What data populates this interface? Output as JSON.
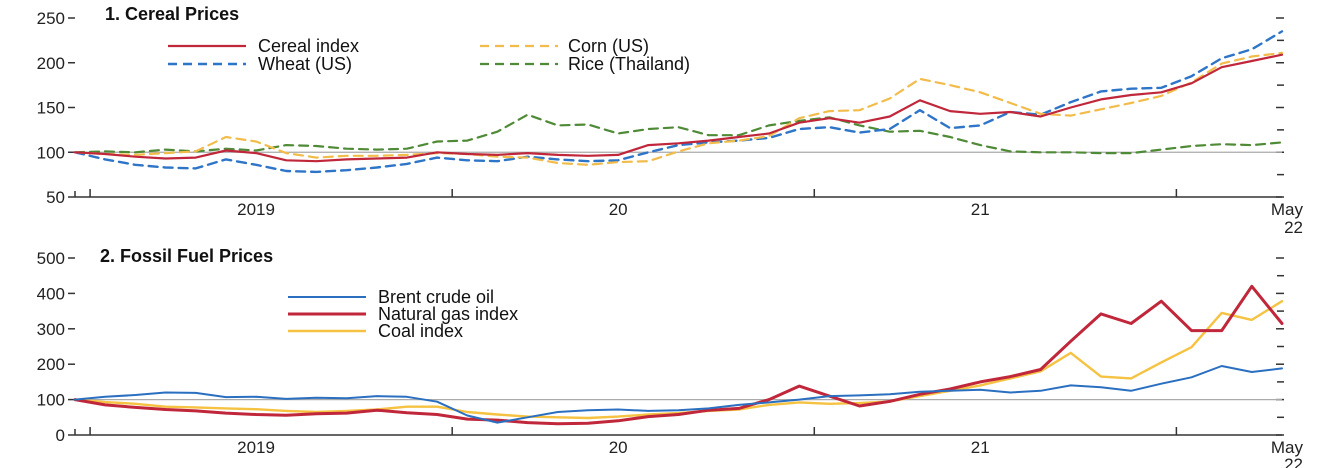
{
  "chart_data": [
    {
      "type": "line",
      "title": "1. Cereal Prices",
      "ylim": [
        50,
        250
      ],
      "yticks": [
        50,
        100,
        150,
        200,
        250
      ],
      "reference_line": 100,
      "x": [
        "2019-01",
        "2019-02",
        "2019-03",
        "2019-04",
        "2019-05",
        "2019-06",
        "2019-07",
        "2019-08",
        "2019-09",
        "2019-10",
        "2019-11",
        "2019-12",
        "2020-01",
        "2020-02",
        "2020-03",
        "2020-04",
        "2020-05",
        "2020-06",
        "2020-07",
        "2020-08",
        "2020-09",
        "2020-10",
        "2020-11",
        "2020-12",
        "2021-01",
        "2021-02",
        "2021-03",
        "2021-04",
        "2021-05",
        "2021-06",
        "2021-07",
        "2021-08",
        "2021-09",
        "2021-10",
        "2021-11",
        "2021-12",
        "2022-01",
        "2022-02",
        "2022-03",
        "2022-04",
        "2022-05"
      ],
      "xtick_labels": [
        {
          "label": "2019",
          "at": 6
        },
        {
          "label": "20",
          "at": 18
        },
        {
          "label": "21",
          "at": 30
        }
      ],
      "end_label": [
        "May",
        "22"
      ],
      "year_boundaries": [
        0.5,
        12.5,
        24.5,
        36.5
      ],
      "legend": {
        "placement": "top-left",
        "columns": 2
      },
      "series": [
        {
          "name": "Cereal index",
          "color": "#c0273a",
          "dash": "solid",
          "width": 2.2,
          "values": [
            100,
            98,
            95,
            93,
            94,
            102,
            99,
            91,
            90,
            92,
            93,
            94,
            100,
            98,
            97,
            99,
            97,
            96,
            97,
            108,
            110,
            113,
            117,
            121,
            133,
            138,
            133,
            140,
            158,
            146,
            143,
            145,
            140,
            150,
            159,
            164,
            167,
            177,
            195,
            202,
            209
          ]
        },
        {
          "name": "Corn (US)",
          "color": "#f2bc4b",
          "dash": "dashed",
          "width": 2.2,
          "values": [
            100,
            98,
            97,
            99,
            101,
            117,
            112,
            99,
            94,
            96,
            96,
            97,
            99,
            98,
            95,
            94,
            88,
            86,
            89,
            90,
            101,
            110,
            113,
            118,
            138,
            146,
            147,
            160,
            182,
            175,
            167,
            155,
            143,
            141,
            148,
            155,
            163,
            178,
            199,
            207,
            211
          ]
        },
        {
          "name": "Wheat (US)",
          "color": "#2e75c8",
          "dash": "dashed",
          "width": 2.4,
          "values": [
            100,
            92,
            86,
            83,
            82,
            92,
            86,
            79,
            78,
            80,
            83,
            87,
            94,
            91,
            90,
            95,
            92,
            90,
            91,
            100,
            108,
            111,
            113,
            116,
            126,
            128,
            122,
            126,
            147,
            127,
            130,
            145,
            142,
            156,
            168,
            171,
            172,
            185,
            205,
            215,
            235
          ]
        },
        {
          "name": "Rice (Thailand)",
          "color": "#4f8a36",
          "dash": "dashed",
          "width": 2.2,
          "values": [
            100,
            101,
            100,
            103,
            101,
            104,
            102,
            108,
            107,
            104,
            103,
            104,
            112,
            113,
            123,
            142,
            130,
            131,
            121,
            126,
            128,
            119,
            119,
            130,
            135,
            139,
            130,
            123,
            124,
            117,
            108,
            101,
            100,
            100,
            99,
            99,
            103,
            107,
            109,
            108,
            111
          ]
        }
      ]
    },
    {
      "type": "line",
      "title": "2. Fossil Fuel Prices",
      "ylim": [
        0,
        500
      ],
      "yticks": [
        0,
        100,
        200,
        300,
        400,
        500
      ],
      "reference_line": 100,
      "x": [
        "2019-01",
        "2019-02",
        "2019-03",
        "2019-04",
        "2019-05",
        "2019-06",
        "2019-07",
        "2019-08",
        "2019-09",
        "2019-10",
        "2019-11",
        "2019-12",
        "2020-01",
        "2020-02",
        "2020-03",
        "2020-04",
        "2020-05",
        "2020-06",
        "2020-07",
        "2020-08",
        "2020-09",
        "2020-10",
        "2020-11",
        "2020-12",
        "2021-01",
        "2021-02",
        "2021-03",
        "2021-04",
        "2021-05",
        "2021-06",
        "2021-07",
        "2021-08",
        "2021-09",
        "2021-10",
        "2021-11",
        "2021-12",
        "2022-01",
        "2022-02",
        "2022-03",
        "2022-04",
        "2022-05"
      ],
      "xtick_labels": [
        {
          "label": "2019",
          "at": 6
        },
        {
          "label": "20",
          "at": 18
        },
        {
          "label": "21",
          "at": 30
        }
      ],
      "end_label": [
        "May",
        "22"
      ],
      "year_boundaries": [
        0.5,
        12.5,
        24.5,
        36.5
      ],
      "legend": {
        "placement": "top-center",
        "columns": 1
      },
      "series": [
        {
          "name": "Brent crude oil",
          "color": "#2a6fc0",
          "dash": "solid",
          "width": 2.0,
          "values": [
            100,
            108,
            113,
            120,
            119,
            107,
            108,
            102,
            105,
            104,
            110,
            108,
            94,
            55,
            35,
            50,
            65,
            70,
            72,
            68,
            70,
            75,
            85,
            92,
            100,
            110,
            112,
            115,
            122,
            125,
            128,
            120,
            125,
            140,
            135,
            125,
            145,
            163,
            195,
            178,
            188
          ]
        },
        {
          "name": "Natural gas index",
          "color": "#c0273a",
          "dash": "solid",
          "width": 3.0,
          "values": [
            100,
            85,
            78,
            72,
            68,
            62,
            58,
            56,
            60,
            62,
            70,
            63,
            58,
            45,
            42,
            35,
            32,
            33,
            40,
            52,
            58,
            70,
            75,
            100,
            138,
            110,
            82,
            95,
            115,
            130,
            150,
            165,
            185,
            265,
            342,
            315,
            378,
            295,
            295,
            420,
            315
          ]
        },
        {
          "name": "Coal index",
          "color": "#f5c242",
          "dash": "solid",
          "width": 2.4,
          "values": [
            100,
            93,
            88,
            80,
            78,
            75,
            73,
            68,
            65,
            68,
            72,
            80,
            80,
            65,
            58,
            52,
            50,
            48,
            52,
            58,
            62,
            68,
            72,
            85,
            92,
            88,
            90,
            95,
            110,
            125,
            140,
            160,
            180,
            232,
            165,
            160,
            205,
            248,
            345,
            325,
            378
          ]
        }
      ]
    }
  ]
}
